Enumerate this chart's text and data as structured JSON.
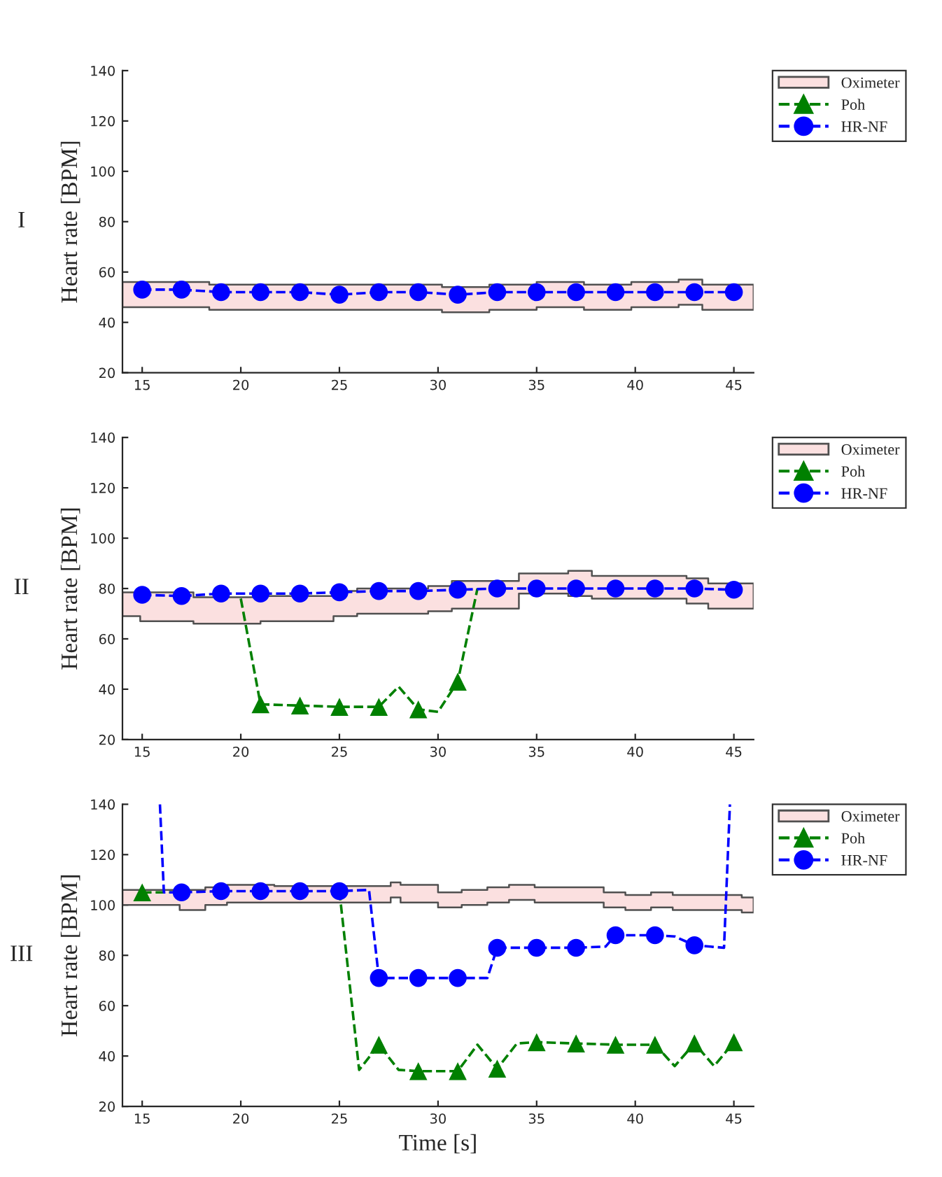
{
  "chart_data": [
    {
      "type": "line",
      "ylabel": "Heart rate [BPM]",
      "annotations": [
        "I"
      ],
      "xlim": [
        14,
        46
      ],
      "xticks": [
        15,
        20,
        25,
        30,
        35,
        40,
        45
      ],
      "ylim": [
        20,
        140
      ],
      "yticks": [
        20,
        40,
        60,
        80,
        100,
        120,
        140
      ],
      "legend": "top right",
      "series": [
        {
          "name": "Oximeter",
          "type": "step",
          "color": "#fbe0e0",
          "values": [
            null,
            null,
            null,
            null,
            null,
            null,
            null,
            null,
            null,
            null
          ],
          "x": [
            14,
            18.4,
            30.2,
            32.6,
            35,
            37.4,
            39.8,
            42.2,
            43.4,
            46
          ],
          "lower": [
            46,
            45,
            44,
            45,
            46,
            45,
            46,
            47,
            45,
            45
          ],
          "upper": [
            56,
            55,
            54,
            55,
            56,
            55,
            56,
            57,
            55,
            55
          ]
        },
        {
          "name": "Poh",
          "type": "scatter",
          "color": "#008000",
          "marker": "triangle",
          "line_style": "dashed"
        },
        {
          "color": "#0000ff",
          "line_style": "dashed",
          "x": [
            15,
            17,
            19,
            21,
            23,
            25,
            27,
            29,
            31,
            33,
            35,
            37,
            39,
            41,
            43,
            45
          ],
          "values": [
            53,
            53,
            52,
            52,
            52,
            51,
            52,
            52,
            51,
            52,
            52,
            52,
            52,
            52,
            52,
            52
          ]
        },
        {
          "name": "HR-NF",
          "type": "scatter",
          "color": "#0000ff",
          "marker": "circle",
          "line_style": "dashed",
          "x": [
            15,
            17,
            19,
            21,
            23,
            25,
            27,
            29,
            31,
            33,
            35,
            37,
            39,
            41,
            43,
            45
          ],
          "values": [
            53,
            53,
            52,
            52,
            52,
            51,
            52,
            52,
            51,
            52,
            52,
            52,
            52,
            52,
            52,
            52
          ]
        }
      ]
    },
    {
      "type": "line",
      "ylabel": "Heart rate [BPM]",
      "annotations": [
        "II"
      ],
      "xlim": [
        14,
        46
      ],
      "xticks": [
        15,
        20,
        25,
        30,
        35,
        40,
        45
      ],
      "ylim": [
        20,
        140
      ],
      "yticks": [
        20,
        40,
        60,
        80,
        100,
        120,
        140
      ],
      "legend": "top right",
      "series": [
        {
          "name": "Oximeter",
          "type": "step",
          "color": "#fbe0e0",
          "values": [
            null,
            null,
            null,
            null,
            null,
            null,
            null,
            null,
            null,
            null,
            null,
            null,
            null,
            null
          ],
          "x": [
            14,
            14.9,
            17.6,
            21,
            24.7,
            25.9,
            29.5,
            30.7,
            34.1,
            36.6,
            37.8,
            42.6,
            43.7,
            46
          ],
          "lower": [
            69,
            67,
            66,
            67,
            69,
            70,
            71,
            72,
            78,
            77,
            76,
            74,
            72,
            72
          ],
          "upper": [
            78.5,
            78.5,
            76.5,
            77,
            79,
            80,
            81,
            83,
            86,
            87,
            85,
            84,
            82,
            82
          ]
        },
        {
          "color": "#008000",
          "line_style": "dashed",
          "x": [
            20,
            21,
            23,
            25,
            27,
            28,
            29,
            30,
            31,
            32
          ],
          "values": [
            76,
            34,
            33.5,
            33,
            33,
            41,
            32,
            31,
            43,
            80
          ]
        },
        {
          "name": "Poh",
          "type": "scatter",
          "color": "#008000",
          "marker": "triangle",
          "line_style": "dashed",
          "x": [
            21,
            23,
            25,
            27,
            29,
            31
          ],
          "values": [
            34,
            33.5,
            33,
            33,
            32,
            43
          ]
        },
        {
          "color": "#0000ff",
          "line_style": "dashed",
          "x": [
            15,
            17,
            19,
            21,
            23,
            25,
            27,
            29,
            31,
            33,
            35,
            37,
            39,
            41,
            43,
            45
          ],
          "values": [
            77.5,
            77,
            78,
            78,
            78,
            78.5,
            79,
            79,
            79.5,
            80,
            80,
            80,
            80,
            80,
            80,
            79.5
          ]
        },
        {
          "name": "HR-NF",
          "type": "scatter",
          "color": "#0000ff",
          "marker": "circle",
          "line_style": "dashed",
          "x": [
            15,
            17,
            19,
            21,
            23,
            25,
            27,
            29,
            31,
            33,
            35,
            37,
            39,
            41,
            43,
            45
          ],
          "values": [
            77.5,
            77,
            78,
            78,
            78,
            78.5,
            79,
            79,
            79.5,
            80,
            80,
            80,
            80,
            80,
            80,
            79.5
          ]
        }
      ]
    },
    {
      "type": "line",
      "xlabel": "Time [s]",
      "ylabel": "Heart rate [BPM]",
      "annotations": [
        "III"
      ],
      "xlim": [
        14,
        46
      ],
      "xticks": [
        15,
        20,
        25,
        30,
        35,
        40,
        45
      ],
      "ylim": [
        20,
        140
      ],
      "yticks": [
        20,
        40,
        60,
        80,
        100,
        120,
        140
      ],
      "legend": "top right",
      "series": [
        {
          "name": "Oximeter",
          "type": "step",
          "color": "#fbe0e0",
          "values": [
            null,
            null,
            null,
            null,
            null,
            null,
            null,
            null,
            null,
            null,
            null,
            null,
            null,
            null,
            null,
            null,
            null,
            null
          ],
          "x": [
            14,
            16.9,
            18.2,
            19.3,
            21.7,
            27.6,
            28.1,
            30,
            31.2,
            32.5,
            33.6,
            34.9,
            38.4,
            39.5,
            40.8,
            41.9,
            45.4,
            46
          ],
          "lower": [
            100,
            98,
            100,
            101,
            101,
            103,
            101,
            99,
            100,
            101,
            102,
            101,
            99,
            98,
            99,
            98,
            97,
            97
          ],
          "upper": [
            106,
            106,
            107,
            108,
            107.5,
            109,
            108,
            105,
            106,
            107,
            108,
            107,
            105,
            104,
            105,
            104,
            103,
            103
          ]
        },
        {
          "color": "#008000",
          "line_style": "dashed",
          "x": [
            15,
            17,
            19,
            21,
            23,
            25,
            26,
            27,
            28,
            29,
            31,
            32,
            33,
            34,
            35,
            37,
            39,
            41,
            42,
            43,
            44,
            45
          ],
          "values": [
            105,
            105,
            null,
            null,
            null,
            105.5,
            34.5,
            44.5,
            34.5,
            34,
            34,
            44.5,
            35,
            45,
            45.5,
            45,
            44.5,
            44.5,
            36,
            45,
            36,
            45.5
          ]
        },
        {
          "name": "Poh",
          "type": "scatter",
          "color": "#008000",
          "marker": "triangle",
          "line_style": "dashed",
          "x": [
            15,
            27,
            29,
            31,
            33,
            35,
            37,
            39,
            41,
            43,
            45
          ],
          "values": [
            105,
            44.5,
            34,
            34,
            35,
            45.5,
            45,
            44.5,
            44.5,
            45,
            45.5
          ]
        },
        {
          "color": "#0000ff",
          "line_style": "dashed",
          "x": [
            15.9,
            16.1,
            17,
            19,
            21,
            23,
            25,
            26.5,
            27,
            29,
            31,
            32.5,
            33,
            35,
            37,
            38.5,
            39,
            41,
            42,
            43,
            44.5,
            44.8
          ],
          "values": [
            140,
            105,
            105,
            105.5,
            105.5,
            105.5,
            105.5,
            106,
            71,
            71,
            71,
            71,
            83,
            83,
            83,
            83.5,
            88,
            88,
            87.5,
            84,
            83,
            140
          ]
        },
        {
          "name": "HR-NF",
          "type": "scatter",
          "color": "#0000ff",
          "marker": "circle",
          "line_style": "dashed",
          "x": [
            17,
            19,
            21,
            23,
            25,
            27,
            29,
            31,
            33,
            35,
            37,
            39,
            41,
            43
          ],
          "values": [
            105,
            105.5,
            105.5,
            105.5,
            105.5,
            71,
            71,
            71,
            83,
            83,
            83,
            88,
            88,
            84
          ]
        }
      ]
    }
  ]
}
